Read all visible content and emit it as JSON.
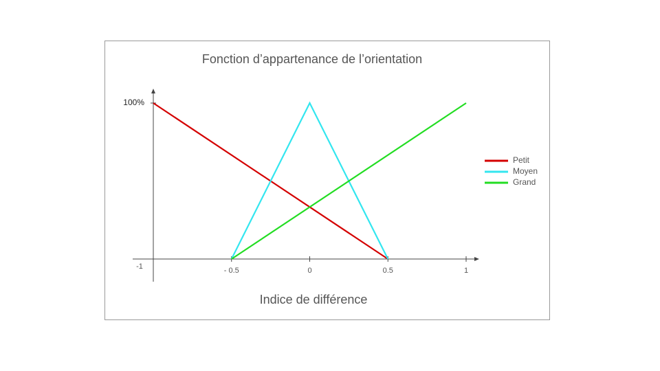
{
  "chart_data": {
    "type": "line",
    "title": "Fonction d’appartenance de l’orientation",
    "x_label": "Indice de différence",
    "series": [
      {
        "name": "Petit",
        "color": "#d40000",
        "x": [
          -1,
          0.5
        ],
        "values": [
          100,
          0
        ]
      },
      {
        "name": "Moyen",
        "color": "#33e6ef",
        "x": [
          -0.5,
          0,
          0.5
        ],
        "values": [
          0,
          100,
          0
        ]
      },
      {
        "name": "Grand",
        "color": "#22dd22",
        "x": [
          -0.5,
          1
        ],
        "values": [
          0,
          100
        ]
      }
    ],
    "xlim": [
      -1,
      1
    ],
    "ylim": [
      0,
      100
    ],
    "xticks": [
      -1,
      {
        "value": -0.5,
        "label": "- 0.5"
      },
      0,
      0.5,
      1
    ],
    "yticks": [
      {
        "value": 100,
        "label": "100%"
      }
    ],
    "legend": "right"
  }
}
